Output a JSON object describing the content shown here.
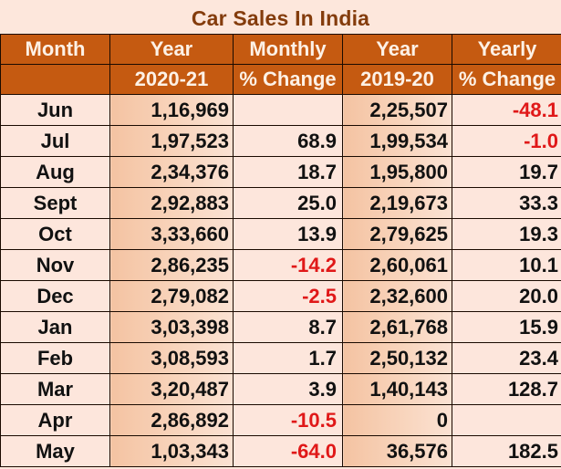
{
  "title": "Car Sales In India",
  "colors": {
    "title": "#843c0c",
    "header_bg": "#c55a11",
    "header_text": "#fdf1e6",
    "cell_bg": "#fde6dc",
    "year_cell_bg_dark": "#f4c3a2",
    "negative": "#e01818"
  },
  "headers": {
    "row1": [
      "Month",
      "Year",
      "Monthly",
      "Year",
      "Yearly"
    ],
    "row2": [
      "",
      "2020-21",
      "% Change",
      "2019-20",
      "% Change"
    ]
  },
  "rows": [
    {
      "month": "Jun",
      "sales_2020_21": "1,16,969",
      "monthly_change": "",
      "sales_2019_20": "2,25,507",
      "yearly_change": "-48.1"
    },
    {
      "month": "Jul",
      "sales_2020_21": "1,97,523",
      "monthly_change": "68.9",
      "sales_2019_20": "1,99,534",
      "yearly_change": "-1.0"
    },
    {
      "month": "Aug",
      "sales_2020_21": "2,34,376",
      "monthly_change": "18.7",
      "sales_2019_20": "1,95,800",
      "yearly_change": "19.7"
    },
    {
      "month": "Sept",
      "sales_2020_21": "2,92,883",
      "monthly_change": "25.0",
      "sales_2019_20": "2,19,673",
      "yearly_change": "33.3"
    },
    {
      "month": "Oct",
      "sales_2020_21": "3,33,660",
      "monthly_change": "13.9",
      "sales_2019_20": "2,79,625",
      "yearly_change": "19.3"
    },
    {
      "month": "Nov",
      "sales_2020_21": "2,86,235",
      "monthly_change": "-14.2",
      "sales_2019_20": "2,60,061",
      "yearly_change": "10.1"
    },
    {
      "month": "Dec",
      "sales_2020_21": "2,79,082",
      "monthly_change": "-2.5",
      "sales_2019_20": "2,32,600",
      "yearly_change": "20.0"
    },
    {
      "month": "Jan",
      "sales_2020_21": "3,03,398",
      "monthly_change": "8.7",
      "sales_2019_20": "2,61,768",
      "yearly_change": "15.9"
    },
    {
      "month": "Feb",
      "sales_2020_21": "3,08,593",
      "monthly_change": "1.7",
      "sales_2019_20": "2,50,132",
      "yearly_change": "23.4"
    },
    {
      "month": "Mar",
      "sales_2020_21": "3,20,487",
      "monthly_change": "3.9",
      "sales_2019_20": "1,40,143",
      "yearly_change": "128.7"
    },
    {
      "month": "Apr",
      "sales_2020_21": "2,86,892",
      "monthly_change": "-10.5",
      "sales_2019_20": "0",
      "yearly_change": ""
    },
    {
      "month": "May",
      "sales_2020_21": "1,03,343",
      "monthly_change": "-64.0",
      "sales_2019_20": "36,576",
      "yearly_change": "182.5"
    }
  ]
}
